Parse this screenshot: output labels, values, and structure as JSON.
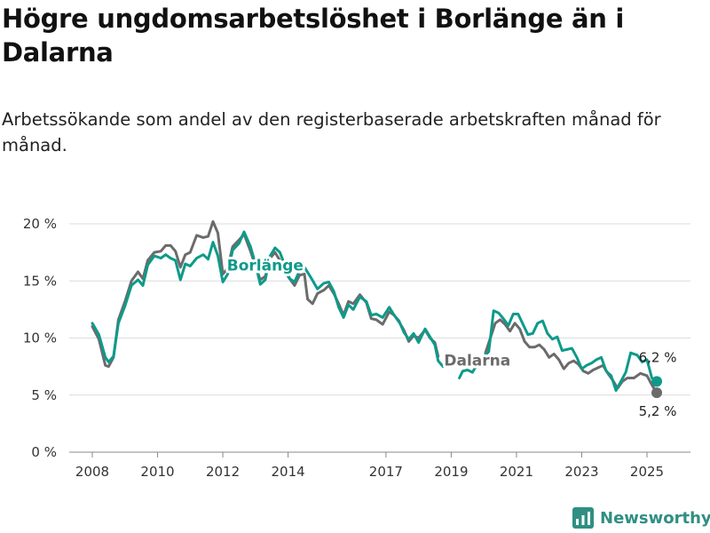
{
  "title": "Högre ungdomsarbetslöshet i Borlänge än i Dalarna",
  "subtitle": "Arbetssökande som andel av den registerbaserade arbetskraften månad för månad.",
  "brand": {
    "name": "Newsworthy",
    "icon": "newsworthy-chart-icon",
    "color": "#2f8f83"
  },
  "chart_data": {
    "type": "line",
    "x_ticks": [
      "2008",
      "2010",
      "2012",
      "2014",
      "2017",
      "2019",
      "2021",
      "2023",
      "2025"
    ],
    "y_ticks": [
      "0 %",
      "5 %",
      "10 %",
      "15 %",
      "20 %"
    ],
    "ylim": [
      0,
      20
    ],
    "grid": true,
    "series": [
      {
        "name": "Borlänge",
        "color": "#0e9a8a",
        "end_label": "6,2 %",
        "points": [
          [
            2008.0,
            11.3
          ],
          [
            2008.2,
            10.3
          ],
          [
            2008.4,
            8.3
          ],
          [
            2008.5,
            7.9
          ],
          [
            2008.65,
            8.4
          ],
          [
            2008.8,
            11.3
          ],
          [
            2009.0,
            12.8
          ],
          [
            2009.2,
            14.6
          ],
          [
            2009.4,
            15.1
          ],
          [
            2009.55,
            14.6
          ],
          [
            2009.7,
            16.4
          ],
          [
            2009.9,
            17.2
          ],
          [
            2010.1,
            17.0
          ],
          [
            2010.25,
            17.3
          ],
          [
            2010.4,
            17.0
          ],
          [
            2010.55,
            16.8
          ],
          [
            2010.7,
            15.1
          ],
          [
            2010.85,
            16.5
          ],
          [
            2011.0,
            16.3
          ],
          [
            2011.2,
            17.0
          ],
          [
            2011.4,
            17.3
          ],
          [
            2011.55,
            16.9
          ],
          [
            2011.7,
            18.4
          ],
          [
            2011.85,
            17.2
          ],
          [
            2012.0,
            14.9
          ],
          [
            2012.15,
            15.6
          ],
          [
            2012.3,
            17.7
          ],
          [
            2012.5,
            18.3
          ],
          [
            2012.65,
            19.3
          ],
          [
            2012.85,
            18.0
          ],
          [
            2013.0,
            16.5
          ],
          [
            2013.15,
            14.7
          ],
          [
            2013.3,
            15.1
          ],
          [
            2013.45,
            17.2
          ],
          [
            2013.6,
            17.9
          ],
          [
            2013.75,
            17.5
          ],
          [
            2013.9,
            16.4
          ],
          [
            2014.05,
            15.2
          ],
          [
            2014.2,
            14.9
          ],
          [
            2014.35,
            15.9
          ],
          [
            2014.5,
            16.2
          ],
          [
            2014.7,
            15.3
          ],
          [
            2014.9,
            14.3
          ],
          [
            2015.1,
            14.8
          ],
          [
            2015.25,
            14.9
          ],
          [
            2015.4,
            14.1
          ],
          [
            2015.55,
            12.7
          ],
          [
            2015.7,
            11.8
          ],
          [
            2015.85,
            12.9
          ],
          [
            2016.0,
            12.5
          ],
          [
            2016.2,
            13.6
          ],
          [
            2016.4,
            13.2
          ],
          [
            2016.55,
            12.0
          ],
          [
            2016.7,
            12.1
          ],
          [
            2016.9,
            11.8
          ],
          [
            2017.1,
            12.7
          ],
          [
            2017.25,
            12.0
          ],
          [
            2017.4,
            11.5
          ],
          [
            2017.55,
            10.5
          ],
          [
            2017.7,
            9.9
          ],
          [
            2017.85,
            10.4
          ],
          [
            2018.0,
            9.6
          ],
          [
            2018.2,
            10.8
          ],
          [
            2018.35,
            10.1
          ],
          [
            2018.5,
            9.4
          ],
          [
            2018.6,
            8.0
          ],
          [
            2018.75,
            7.5
          ]
        ],
        "points_late": [
          [
            2019.25,
            6.5
          ],
          [
            2019.35,
            7.1
          ],
          [
            2019.5,
            7.2
          ],
          [
            2019.65,
            7.0
          ],
          [
            2019.8,
            7.7
          ],
          [
            2019.9,
            7.7
          ],
          [
            2020.0,
            8.4
          ],
          [
            2020.15,
            8.8
          ],
          [
            2020.3,
            12.4
          ],
          [
            2020.45,
            12.2
          ],
          [
            2020.6,
            11.7
          ],
          [
            2020.75,
            11.1
          ],
          [
            2020.9,
            12.1
          ],
          [
            2021.05,
            12.1
          ],
          [
            2021.2,
            11.2
          ],
          [
            2021.35,
            10.3
          ],
          [
            2021.5,
            10.4
          ],
          [
            2021.65,
            11.3
          ],
          [
            2021.8,
            11.5
          ],
          [
            2021.95,
            10.4
          ],
          [
            2022.1,
            9.9
          ],
          [
            2022.25,
            10.1
          ],
          [
            2022.4,
            8.9
          ],
          [
            2022.55,
            9.0
          ],
          [
            2022.7,
            9.1
          ],
          [
            2022.85,
            8.3
          ],
          [
            2023.0,
            7.3
          ],
          [
            2023.15,
            7.6
          ],
          [
            2023.3,
            7.8
          ],
          [
            2023.45,
            8.1
          ],
          [
            2023.6,
            8.3
          ],
          [
            2023.75,
            7.1
          ],
          [
            2023.9,
            6.7
          ],
          [
            2024.05,
            5.4
          ],
          [
            2024.2,
            6.2
          ],
          [
            2024.35,
            7.0
          ],
          [
            2024.5,
            8.7
          ],
          [
            2024.7,
            8.5
          ],
          [
            2024.85,
            7.9
          ],
          [
            2025.0,
            8.1
          ],
          [
            2025.15,
            6.5
          ],
          [
            2025.3,
            6.2
          ]
        ]
      },
      {
        "name": "Dalarna",
        "color": "#6b6b6b",
        "end_label": "5,2 %",
        "points": [
          [
            2008.0,
            11.0
          ],
          [
            2008.2,
            9.9
          ],
          [
            2008.4,
            7.6
          ],
          [
            2008.5,
            7.5
          ],
          [
            2008.65,
            8.3
          ],
          [
            2008.8,
            11.6
          ],
          [
            2009.0,
            13.2
          ],
          [
            2009.2,
            15.0
          ],
          [
            2009.4,
            15.8
          ],
          [
            2009.55,
            15.2
          ],
          [
            2009.7,
            16.8
          ],
          [
            2009.9,
            17.5
          ],
          [
            2010.1,
            17.6
          ],
          [
            2010.25,
            18.1
          ],
          [
            2010.4,
            18.1
          ],
          [
            2010.55,
            17.6
          ],
          [
            2010.7,
            16.2
          ],
          [
            2010.85,
            17.3
          ],
          [
            2011.0,
            17.5
          ],
          [
            2011.2,
            19.0
          ],
          [
            2011.4,
            18.8
          ],
          [
            2011.55,
            18.9
          ],
          [
            2011.7,
            20.2
          ],
          [
            2011.85,
            19.2
          ],
          [
            2012.0,
            15.6
          ],
          [
            2012.15,
            16.1
          ],
          [
            2012.3,
            18.0
          ],
          [
            2012.5,
            18.6
          ],
          [
            2012.65,
            19.1
          ],
          [
            2012.85,
            17.6
          ],
          [
            2013.0,
            16.3
          ],
          [
            2013.15,
            15.1
          ],
          [
            2013.3,
            15.4
          ],
          [
            2013.45,
            17.0
          ],
          [
            2013.6,
            17.5
          ],
          [
            2013.75,
            16.8
          ],
          [
            2013.9,
            15.8
          ],
          [
            2014.05,
            15.2
          ],
          [
            2014.2,
            14.6
          ],
          [
            2014.35,
            15.5
          ],
          [
            2014.5,
            15.6
          ],
          [
            2014.6,
            13.4
          ],
          [
            2014.75,
            13.0
          ],
          [
            2014.9,
            13.9
          ],
          [
            2015.1,
            14.2
          ],
          [
            2015.25,
            14.6
          ],
          [
            2015.4,
            13.9
          ],
          [
            2015.55,
            13.0
          ],
          [
            2015.7,
            12.0
          ],
          [
            2015.85,
            13.2
          ],
          [
            2016.0,
            13.0
          ],
          [
            2016.2,
            13.8
          ],
          [
            2016.4,
            13.1
          ],
          [
            2016.55,
            11.7
          ],
          [
            2016.7,
            11.6
          ],
          [
            2016.9,
            11.2
          ],
          [
            2017.1,
            12.3
          ],
          [
            2017.25,
            12.0
          ],
          [
            2017.4,
            11.4
          ],
          [
            2017.55,
            10.7
          ],
          [
            2017.7,
            9.7
          ],
          [
            2017.85,
            10.2
          ],
          [
            2018.0,
            10.0
          ],
          [
            2018.2,
            10.7
          ],
          [
            2018.35,
            10.0
          ],
          [
            2018.5,
            9.6
          ],
          [
            2018.6,
            8.4
          ]
        ],
        "points_late": [
          [
            2020.05,
            8.7
          ],
          [
            2020.2,
            10.0
          ],
          [
            2020.35,
            11.3
          ],
          [
            2020.5,
            11.6
          ],
          [
            2020.65,
            11.2
          ],
          [
            2020.8,
            10.6
          ],
          [
            2020.95,
            11.3
          ],
          [
            2021.1,
            10.8
          ],
          [
            2021.25,
            9.7
          ],
          [
            2021.4,
            9.2
          ],
          [
            2021.55,
            9.2
          ],
          [
            2021.7,
            9.4
          ],
          [
            2021.85,
            9.0
          ],
          [
            2022.0,
            8.3
          ],
          [
            2022.15,
            8.6
          ],
          [
            2022.3,
            8.1
          ],
          [
            2022.45,
            7.3
          ],
          [
            2022.6,
            7.8
          ],
          [
            2022.75,
            8.0
          ],
          [
            2022.9,
            7.7
          ],
          [
            2023.05,
            7.1
          ],
          [
            2023.2,
            6.9
          ],
          [
            2023.35,
            7.2
          ],
          [
            2023.5,
            7.4
          ],
          [
            2023.65,
            7.6
          ],
          [
            2023.8,
            6.9
          ],
          [
            2023.95,
            6.3
          ],
          [
            2024.1,
            5.6
          ],
          [
            2024.25,
            6.2
          ],
          [
            2024.4,
            6.5
          ],
          [
            2024.6,
            6.5
          ],
          [
            2024.8,
            6.9
          ],
          [
            2025.0,
            6.7
          ],
          [
            2025.15,
            5.9
          ],
          [
            2025.3,
            5.2
          ]
        ]
      }
    ]
  }
}
